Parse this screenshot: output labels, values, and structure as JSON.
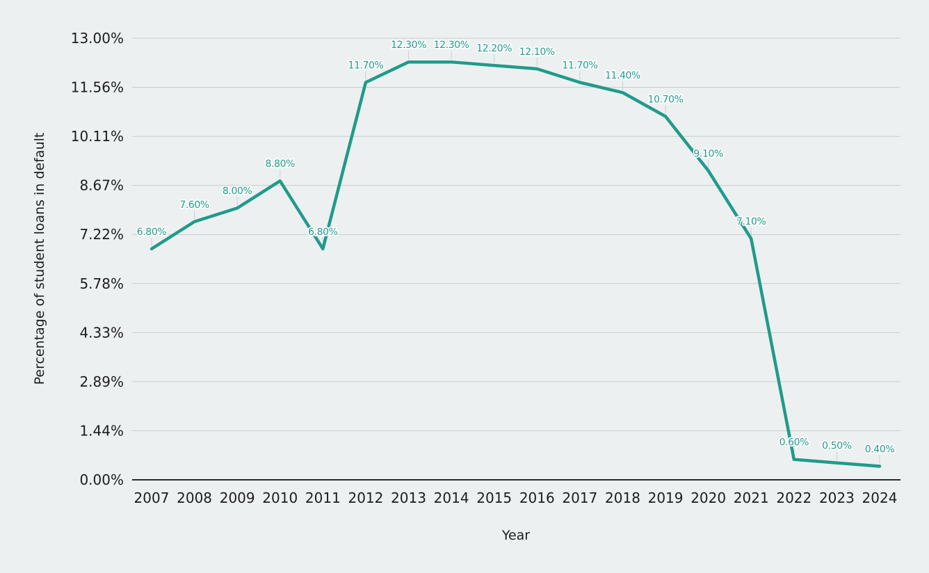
{
  "chart_data": {
    "type": "line",
    "title": "",
    "xlabel": "Year",
    "ylabel": "Percentage of student loans in default",
    "categories": [
      "2007",
      "2008",
      "2009",
      "2010",
      "2011",
      "2012",
      "2013",
      "2014",
      "2015",
      "2016",
      "2017",
      "2018",
      "2019",
      "2020",
      "2021",
      "2022",
      "2023",
      "2024"
    ],
    "values": [
      6.8,
      7.6,
      8.0,
      8.8,
      6.8,
      11.7,
      12.3,
      12.3,
      12.2,
      12.1,
      11.7,
      11.4,
      10.7,
      9.1,
      7.1,
      0.6,
      0.5,
      0.4
    ],
    "point_labels": [
      "6.80%",
      "7.60%",
      "8.00%",
      "8.80%",
      "6.80%",
      "11.70%",
      "12.30%",
      "12.30%",
      "12.20%",
      "12.10%",
      "11.70%",
      "11.40%",
      "10.70%",
      "9.10%",
      "7.10%",
      "0.60%",
      "0.50%",
      "0.40%"
    ],
    "y_tick_labels": [
      "0.00%",
      "1.44%",
      "2.89%",
      "4.33%",
      "5.78%",
      "7.22%",
      "8.67%",
      "10.11%",
      "11.56%",
      "13.00%"
    ],
    "ylim": [
      0,
      13
    ],
    "grid": true,
    "legend": false,
    "colors": {
      "line": "#1f9b8a",
      "point_label": "#1f9b8a",
      "point_label_halo": "#ffffff",
      "background": "#edf0f1",
      "gridline": "#c6ccce",
      "zero_axis_line": "#27292a",
      "leader_tick": "#c9ced0",
      "tick_text": "#1b1d1f"
    }
  }
}
